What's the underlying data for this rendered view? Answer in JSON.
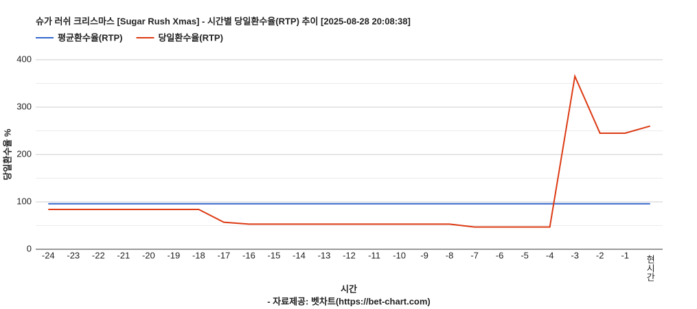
{
  "chart_data": {
    "type": "line",
    "title": "슈가 러쉬 크리스마스 [Sugar Rush Xmas] - 시간별 당일환수율(RTP) 추이 [2025-08-28 20:08:38]",
    "x_label": "시간",
    "source": "- 자료제공: 벳차트(https://bet-chart.com)",
    "y_label": "당일환수율 %",
    "categories": [
      "-24",
      "-23",
      "-22",
      "-21",
      "-20",
      "-19",
      "-18",
      "-17",
      "-16",
      "-15",
      "-14",
      "-13",
      "-12",
      "-11",
      "-10",
      "-9",
      "-8",
      "-7",
      "-6",
      "-5",
      "-4",
      "-3",
      "-2",
      "-1",
      "현시간"
    ],
    "series": [
      {
        "name": "평균환수율(RTP)",
        "color": "#3366cc",
        "values": [
          96,
          96,
          96,
          96,
          96,
          96,
          96,
          96,
          96,
          96,
          96,
          96,
          96,
          96,
          96,
          96,
          96,
          96,
          96,
          96,
          96,
          96,
          96,
          96,
          96
        ]
      },
      {
        "name": "당일환수율(RTP)",
        "color": "#dc3912",
        "values": [
          84,
          84,
          84,
          84,
          84,
          84,
          84,
          57,
          53,
          53,
          53,
          53,
          53,
          53,
          53,
          53,
          53,
          47,
          47,
          47,
          47,
          365,
          245,
          245,
          260
        ]
      }
    ],
    "ylim": [
      0,
      400
    ],
    "yticks": [
      0,
      100,
      200,
      300,
      400
    ],
    "minor_yticks": [
      50,
      150,
      250,
      350
    ],
    "grid": true
  }
}
